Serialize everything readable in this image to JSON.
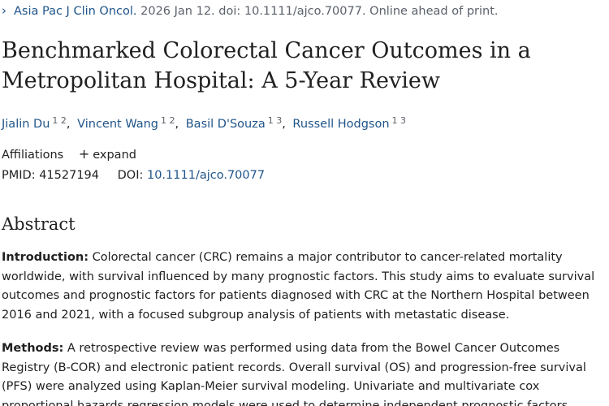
{
  "citation": {
    "journal": "Asia Pac J Clin Oncol.",
    "details": "2026 Jan 12. doi: 10.1111/ajco.70077. Online ahead of print."
  },
  "title": "Benchmarked Colorectal Cancer Outcomes in a Metropolitan Hospital: A 5-Year Review",
  "authors": [
    {
      "name": "Jialin Du",
      "aff": "1 2"
    },
    {
      "name": "Vincent Wang",
      "aff": "1 2"
    },
    {
      "name": "Basil D'Souza",
      "aff": "1 3"
    },
    {
      "name": "Russell Hodgson",
      "aff": "1 3"
    }
  ],
  "affiliations": {
    "label": "Affiliations",
    "expand_label": "expand"
  },
  "ids": {
    "pmid_label": "PMID:",
    "pmid": "41527194",
    "doi_label": "DOI:",
    "doi": "10.1111/ajco.70077"
  },
  "abstract": {
    "heading": "Abstract",
    "introduction_label": "Introduction:",
    "introduction_text": "Colorectal cancer (CRC) remains a major contributor to cancer-related mortality worldwide, with survival influenced by many prognostic factors. This study aims to evaluate survival outcomes and prognostic factors for patients diagnosed with CRC at the Northern Hospital between 2016 and 2021, with a focused subgroup analysis of patients with metastatic disease.",
    "methods_label": "Methods:",
    "methods_text": "A retrospective review was performed using data from the Bowel Cancer Outcomes Registry (B-COR) and electronic patient records. Overall survival (OS) and progression-free survival (PFS) were analyzed using Kaplan-Meier survival modeling. Univariate and multivariate cox proportional hazards regression models were used to determine independent prognostic factors."
  }
}
